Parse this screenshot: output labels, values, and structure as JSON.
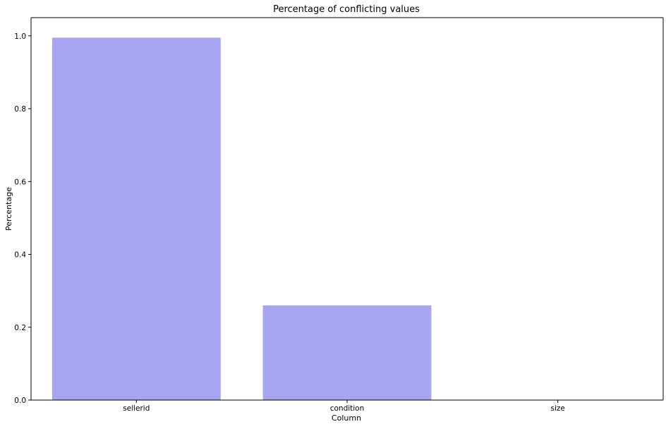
{
  "chart_data": {
    "type": "bar",
    "title": "Percentage of conflicting values",
    "xlabel": "Column",
    "ylabel": "Percentage",
    "categories": [
      "sellerid",
      "condition",
      "size"
    ],
    "values": [
      0.995,
      0.26,
      0.0
    ],
    "ylim": [
      0,
      1.05
    ],
    "yticks": [
      0.0,
      0.2,
      0.4,
      0.6,
      0.8,
      1.0
    ],
    "ytick_labels": [
      "0.0",
      "0.2",
      "0.4",
      "0.6",
      "0.8",
      "1.0"
    ],
    "bar_color": "#a6a6f0",
    "grid": false,
    "legend": "none"
  }
}
